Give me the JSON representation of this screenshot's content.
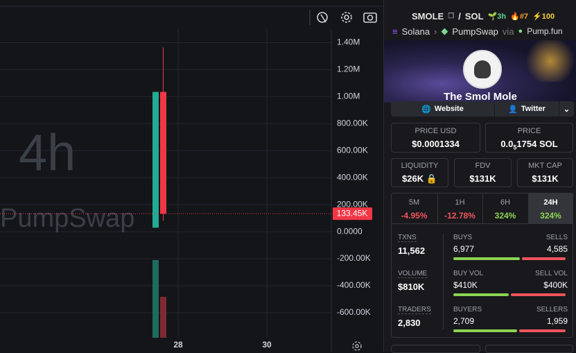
{
  "chart": {
    "type": "candlestick",
    "watermark_interval": "4h",
    "watermark_source": "PumpSwap",
    "ylim": [
      -785000,
      1500000
    ],
    "yticks": [
      {
        "value": 1400000,
        "label": "1.40M"
      },
      {
        "value": 1200000,
        "label": "1.20M"
      },
      {
        "value": 1000000,
        "label": "1.00M"
      },
      {
        "value": 800000,
        "label": "800.00K"
      },
      {
        "value": 600000,
        "label": "600.00K"
      },
      {
        "value": 400000,
        "label": "400.00K"
      },
      {
        "value": 200000,
        "label": "200.00K"
      },
      {
        "value": 0,
        "label": "0.0000"
      },
      {
        "value": -200000,
        "label": "-200.00K"
      },
      {
        "value": -400000,
        "label": "-400.00K"
      },
      {
        "value": -600000,
        "label": "-600.00K"
      }
    ],
    "xticks": [
      "28",
      "30"
    ],
    "candles": [
      {
        "open": 30000,
        "high": 1035000,
        "low": 30000,
        "close": 1035000,
        "color": "#22ab94"
      },
      {
        "open": 1035000,
        "high": 1365000,
        "low": 80000,
        "close": 133450,
        "color": "#f23645"
      }
    ],
    "last_price": {
      "value": 133450,
      "label": "133.45K"
    },
    "grid": true
  },
  "token": {
    "symbol": "SMOLE",
    "separator": "/",
    "quote": "SOL",
    "age": "3h",
    "rank": "#7",
    "boosts": "100"
  },
  "breadcrumb": {
    "chain": "Solana",
    "dex": "PumpSwap",
    "via": "via",
    "launchpad": "Pump.fun"
  },
  "banner": {
    "name": "The Smol Mole"
  },
  "links": [
    "Website",
    "Twitter"
  ],
  "prices": [
    {
      "label": "PRICE USD",
      "value": "$0.0001334"
    },
    {
      "label": "PRICE",
      "value_prefix": "0.0",
      "value_subscript": "5",
      "value_suffix": "1754 SOL"
    }
  ],
  "metrics": [
    {
      "label": "LIQUIDITY",
      "value": "$26K"
    },
    {
      "label": "FDV",
      "value": "$131K"
    },
    {
      "label": "MKT CAP",
      "value": "$131K"
    }
  ],
  "changes": [
    {
      "period": "5M",
      "value": "-4.95%"
    },
    {
      "period": "1H",
      "value": "-12.78%"
    },
    {
      "period": "6H",
      "value": "324%"
    },
    {
      "period": "24H",
      "value": "324%"
    }
  ],
  "stats": [
    {
      "label": "TXNS",
      "value": "11,562",
      "left_label": "BUYS",
      "left_value": "6,977",
      "right_label": "SELLS",
      "right_value": "4,585"
    },
    {
      "label": "VOLUME",
      "value": "$810K",
      "left_label": "BUY VOL",
      "left_value": "$410K",
      "right_label": "SELL VOL",
      "right_value": "$400K"
    },
    {
      "label": "TRADERS",
      "value": "2,830",
      "left_label": "BUYERS",
      "left_value": "2,709",
      "right_label": "SELLERS",
      "right_value": "1,959"
    }
  ]
}
